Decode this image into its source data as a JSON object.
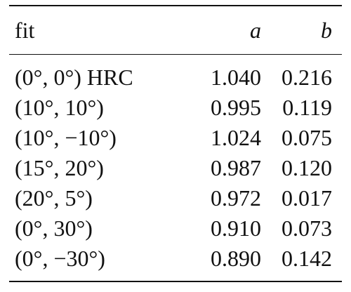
{
  "table": {
    "headers": {
      "fit": "fit",
      "a": "a",
      "b": "b"
    },
    "rows": [
      {
        "fit": "(0°, 0°) HRC",
        "a": "1.040",
        "b": "0.216"
      },
      {
        "fit": "(10°, 10°)",
        "a": "0.995",
        "b": "0.119"
      },
      {
        "fit": "(10°, −10°)",
        "a": "1.024",
        "b": "0.075"
      },
      {
        "fit": "(15°, 20°)",
        "a": "0.987",
        "b": "0.120"
      },
      {
        "fit": "(20°, 5°)",
        "a": "0.972",
        "b": "0.017"
      },
      {
        "fit": "(0°, 30°)",
        "a": "0.910",
        "b": "0.073"
      },
      {
        "fit": "(0°, −30°)",
        "a": "0.890",
        "b": "0.142"
      }
    ]
  }
}
